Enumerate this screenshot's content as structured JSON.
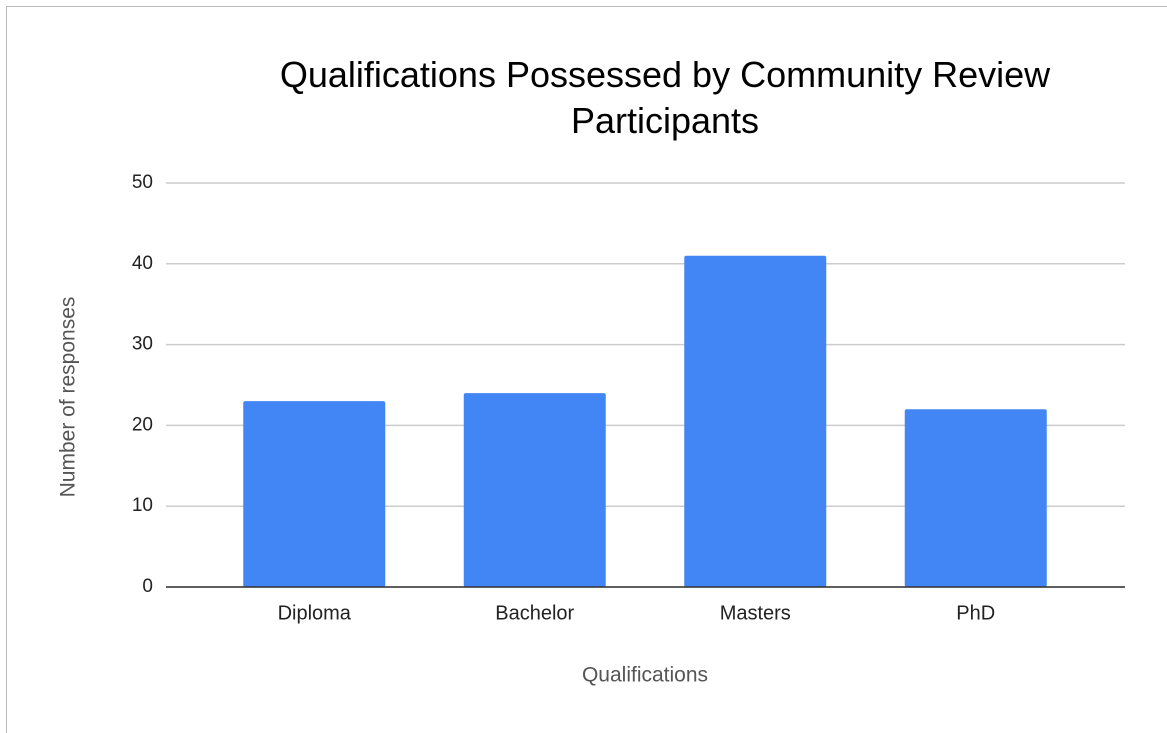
{
  "chart_data": {
    "type": "bar",
    "title": "Qualifications Possessed by Community Review Participants",
    "x_label": "Qualifications",
    "y_label": "Number of responses",
    "categories": [
      "Diploma",
      "Bachelor",
      "Masters",
      "PhD"
    ],
    "values": [
      23,
      24,
      41,
      22
    ],
    "color": "#4285f4",
    "ylim": [
      0,
      50
    ],
    "yticks": [
      0,
      10,
      20,
      30,
      40,
      50
    ],
    "grid": true
  }
}
